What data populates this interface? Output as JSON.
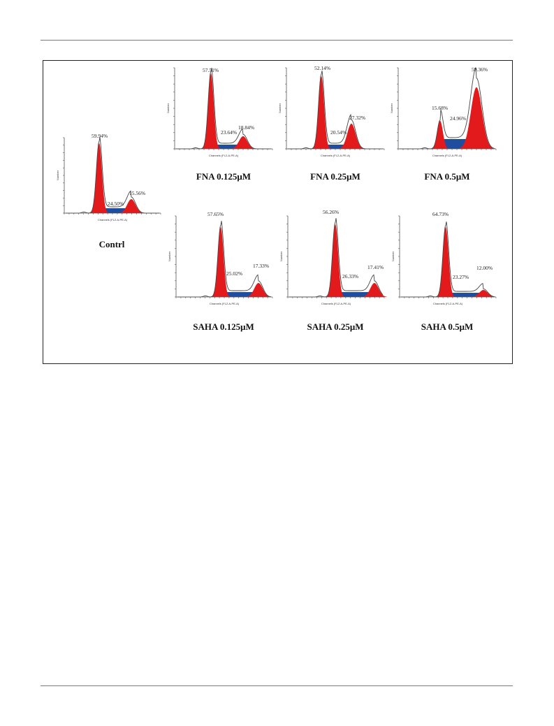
{
  "colors": {
    "g1_fill": "#e31a1c",
    "sphase_fill": "#1f4e9e",
    "outline": "#444444",
    "axis": "#555555"
  },
  "axis_text": {
    "xlabel": "Channels (FL2-A-PE-A)",
    "ylabel": "Number"
  },
  "panels": [
    {
      "id": "contrl",
      "caption": "Contrl",
      "g1": "59.94%",
      "s": "24.50%",
      "g2": "15.56%"
    },
    {
      "id": "fna-0125",
      "caption": "FNA 0.125μM",
      "g1": "57.51%",
      "s": "23.64%",
      "g2": "18.84%"
    },
    {
      "id": "fna-025",
      "caption": "FNA 0.25μM",
      "g1": "52.14%",
      "s": "20.54%",
      "g2": "27.32%"
    },
    {
      "id": "fna-05",
      "caption": "FNA 0.5μM",
      "g1": "15.68%",
      "s": "24.96%",
      "g2": "59.36%"
    },
    {
      "id": "saha-0125",
      "caption": "SAHA 0.125μM",
      "g1": "57.65%",
      "s": "25.02%",
      "g2": "17.33%"
    },
    {
      "id": "saha-025",
      "caption": "SAHA 0.25μM",
      "g1": "56.26%",
      "s": "26.33%",
      "g2": "17.41%"
    },
    {
      "id": "saha-05",
      "caption": "SAHA 0.5μM",
      "g1": "64.73%",
      "s": "23.27%",
      "g2": "12.00%"
    }
  ]
}
